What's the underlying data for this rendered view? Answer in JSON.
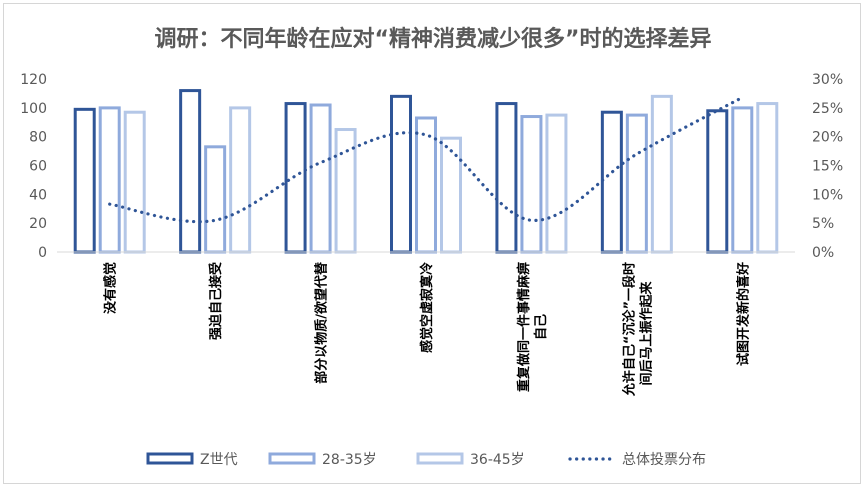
{
  "chart_data": {
    "type": "bar",
    "title": "调研：不同年龄在应对“精神消费减少很多”时的选择差异",
    "categories": [
      [
        "没有感觉"
      ],
      [
        "强迫自己接受"
      ],
      [
        "部分以物质/欲望代替"
      ],
      [
        "感觉空虚寂寞冷"
      ],
      [
        "重复做同一件事情麻痹",
        "自己"
      ],
      [
        "允许自己“沉沦”一段时",
        "间后马上振作起来"
      ],
      [
        "试图开发新的喜好"
      ]
    ],
    "series": [
      {
        "name": "Z世代",
        "type": "bar",
        "axis": "left",
        "style": "outline",
        "color": "#2f5597",
        "values": [
          100,
          113,
          104,
          109,
          104,
          98,
          99
        ]
      },
      {
        "name": "28-35岁",
        "type": "bar",
        "axis": "left",
        "style": "outline",
        "color": "#8faadc",
        "values": [
          101,
          74,
          103,
          94,
          95,
          96,
          101
        ]
      },
      {
        "name": "36-45岁",
        "type": "bar",
        "axis": "left",
        "style": "outline",
        "color": "#b4c7e7",
        "values": [
          98,
          101,
          86,
          80,
          96,
          109,
          104
        ]
      },
      {
        "name": "总体投票分布",
        "type": "line",
        "axis": "right",
        "style": "dotted",
        "color": "#2f5597",
        "values": [
          0.083,
          0.055,
          0.155,
          0.203,
          0.055,
          0.17,
          0.268
        ]
      }
    ],
    "y_left": {
      "min": 0,
      "max": 120,
      "step": 20,
      "ticks": [
        "0",
        "20",
        "40",
        "60",
        "80",
        "100",
        "120"
      ]
    },
    "y_right": {
      "min": 0,
      "max": 0.3,
      "step": 0.05,
      "ticks": [
        "0%",
        "5%",
        "10%",
        "15%",
        "20%",
        "25%",
        "30%"
      ]
    },
    "grid": false,
    "legend_position": "bottom"
  }
}
